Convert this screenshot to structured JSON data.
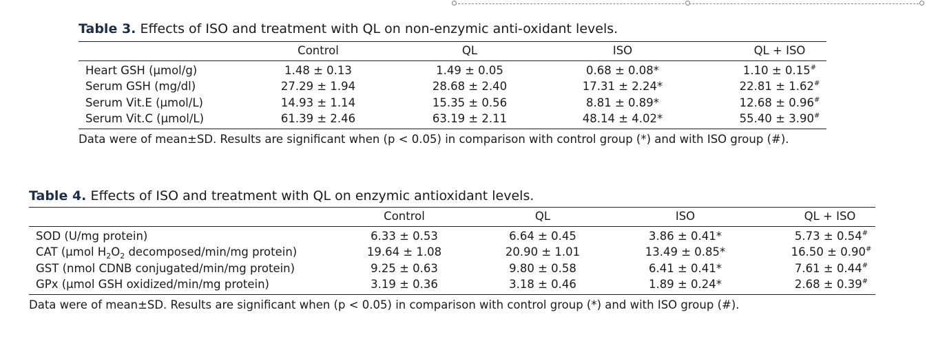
{
  "table3": {
    "label": "Table 3.",
    "title": "Effects of ISO and treatment with QL on non-enzymic anti-oxidant levels.",
    "columns": [
      "Control",
      "QL",
      "ISO",
      "QL + ISO"
    ],
    "rows": [
      {
        "label": "Heart GSH (μmol/g)",
        "values": [
          "1.48 ± 0.13",
          "1.49 ± 0.05",
          "0.68 ± 0.08*",
          "1.10 ± 0.15"
        ],
        "marks": [
          "",
          "",
          "",
          "#"
        ]
      },
      {
        "label": "Serum GSH (mg/dl)",
        "values": [
          "27.29 ± 1.94",
          "28.68 ± 2.40",
          "17.31 ± 2.24*",
          "22.81 ± 1.62"
        ],
        "marks": [
          "",
          "",
          "",
          "#"
        ]
      },
      {
        "label": "Serum Vit.E (μmol/L)",
        "values": [
          "14.93 ± 1.14",
          "15.35 ± 0.56",
          "8.81 ± 0.89*",
          "12.68 ± 0.96"
        ],
        "marks": [
          "",
          "",
          "",
          "#"
        ]
      },
      {
        "label": "Serum Vit.C (μmol/L)",
        "values": [
          "61.39 ± 2.46",
          "63.19 ± 2.11",
          "48.14 ± 4.02*",
          "55.40 ± 3.90"
        ],
        "marks": [
          "",
          "",
          "",
          "#"
        ]
      }
    ],
    "note": "Data were of mean±SD. Results are significant when (p < 0.05) in comparison with control group (*) and with ISO group (#)."
  },
  "table4": {
    "label": "Table 4.",
    "title": "Effects of ISO and treatment with QL on enzymic antioxidant levels.",
    "columns": [
      "Control",
      "QL",
      "ISO",
      "QL + ISO"
    ],
    "rows": [
      {
        "label": "SOD (U/mg protein)",
        "values": [
          "6.33 ± 0.53",
          "6.64 ± 0.45",
          "3.86 ± 0.41*",
          "5.73 ± 0.54"
        ],
        "marks": [
          "",
          "",
          "",
          "#"
        ]
      },
      {
        "label_parts": [
          "CAT (μmol H",
          "2",
          "O",
          "2",
          " decomposed/min/mg protein)"
        ],
        "values": [
          "19.64 ± 1.08",
          "20.90 ± 1.01",
          "13.49 ± 0.85*",
          "16.50 ± 0.90"
        ],
        "marks": [
          "",
          "",
          "",
          "#"
        ]
      },
      {
        "label": "GST (nmol CDNB conjugated/min/mg protein)",
        "values": [
          "9.25 ± 0.63",
          "9.80 ± 0.58",
          "6.41 ± 0.41*",
          "7.61 ± 0.44"
        ],
        "marks": [
          "",
          "",
          "",
          "#"
        ]
      },
      {
        "label": "GPx (μmol GSH oxidized/min/mg protein)",
        "values": [
          "3.19 ± 0.36",
          "3.18 ± 0.46",
          "1.89 ± 0.24*",
          "2.68 ± 0.39"
        ],
        "marks": [
          "",
          "",
          "",
          "#"
        ]
      }
    ],
    "note": "Data were of mean±SD. Results are significant when (p < 0.05) in comparison with control group (*) and with ISO group (#)."
  }
}
